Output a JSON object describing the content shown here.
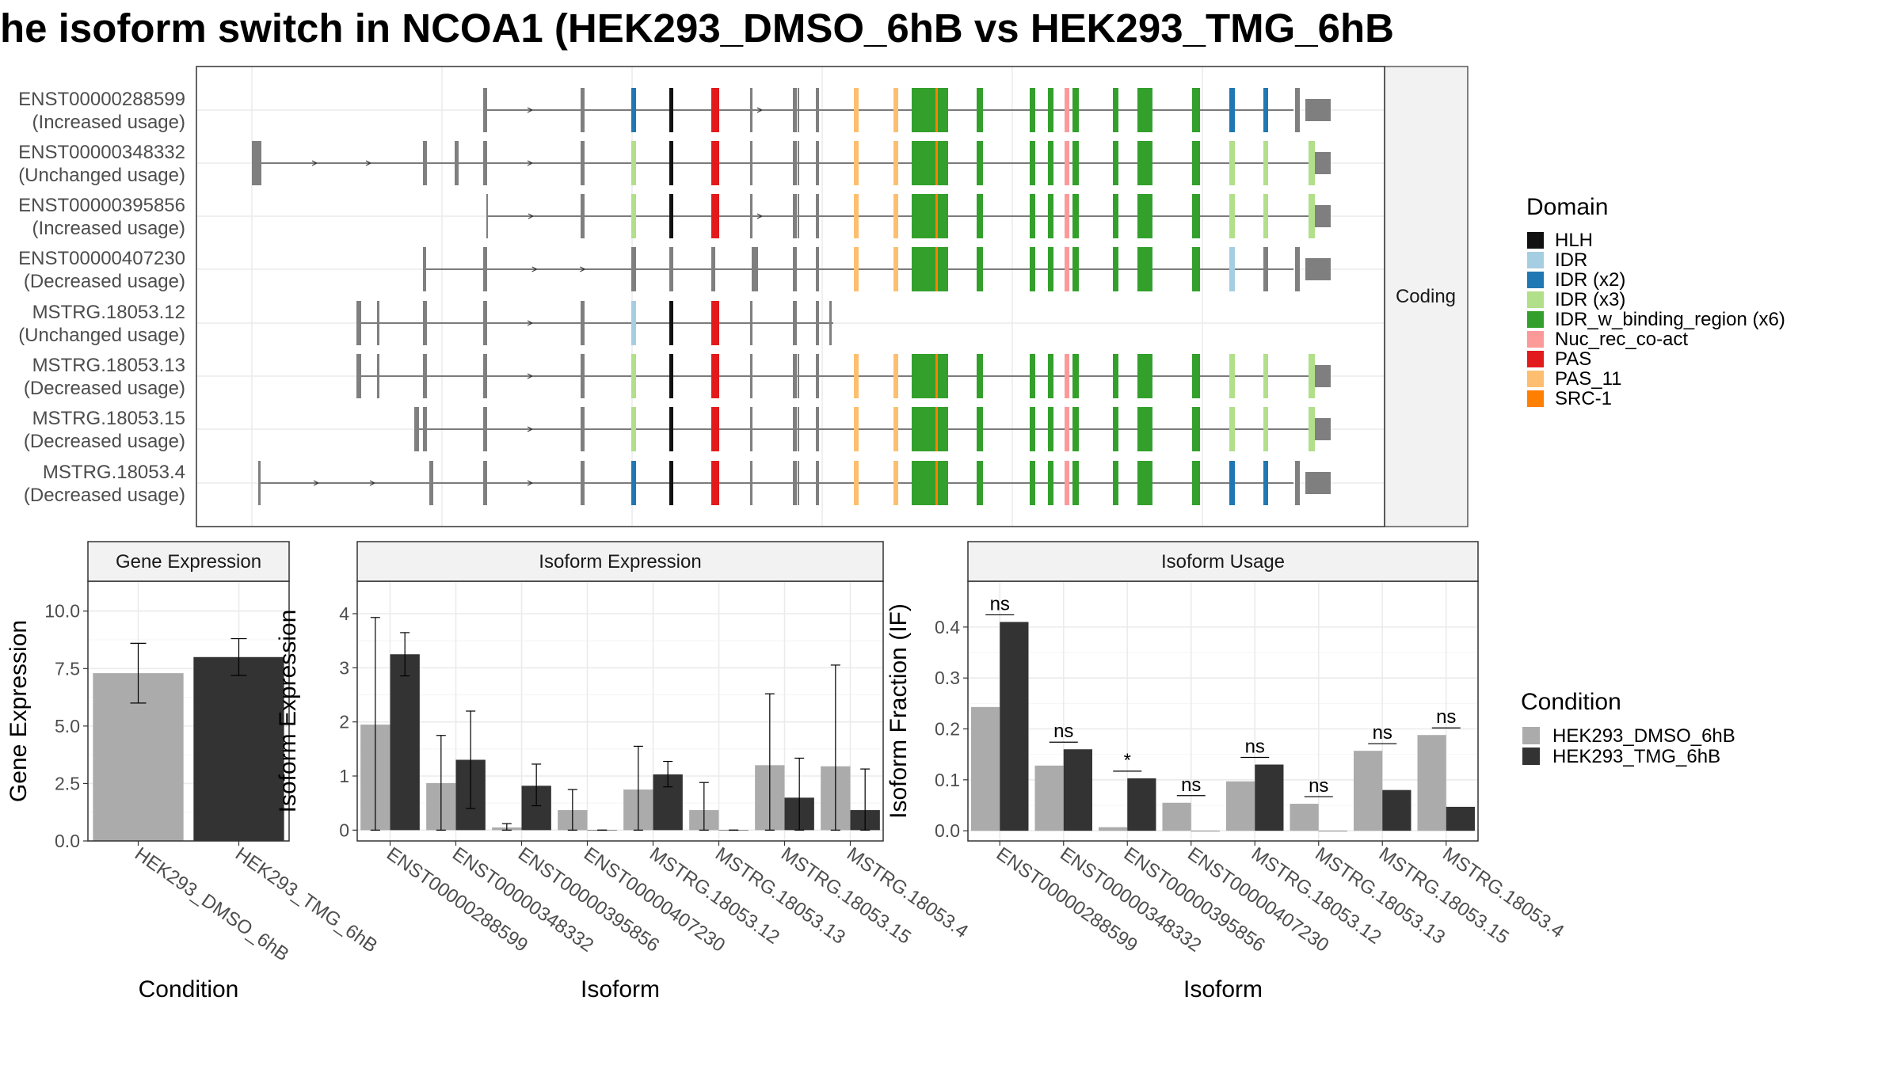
{
  "title": "he isoform switch in NCOA1 (HEK293_DMSO_6hB vs HEK293_TMG_6hB",
  "colors": {
    "dmso": "#ababab",
    "tmg": "#333333",
    "grid": "#ebebeb",
    "exon": "#7f7f7f",
    "strip": "#f2f2f2"
  },
  "structure_panel": {
    "facet_label": "Coding",
    "transcripts": [
      {
        "id": "ENST00000288599",
        "usage": "(Increased usage)"
      },
      {
        "id": "ENST00000348332",
        "usage": "(Unchanged usage)"
      },
      {
        "id": "ENST00000395856",
        "usage": "(Increased usage)"
      },
      {
        "id": "ENST00000407230",
        "usage": "(Decreased usage)"
      },
      {
        "id": "MSTRG.18053.12",
        "usage": "(Unchanged usage)"
      },
      {
        "id": "MSTRG.18053.13",
        "usage": "(Decreased usage)"
      },
      {
        "id": "MSTRG.18053.15",
        "usage": "(Decreased usage)"
      },
      {
        "id": "MSTRG.18053.4",
        "usage": "(Decreased usage)"
      }
    ]
  },
  "domain_legend": {
    "title": "Domain",
    "items": [
      {
        "label": "HLH",
        "color": "#111111"
      },
      {
        "label": "IDR",
        "color": "#a6cee3"
      },
      {
        "label": "IDR (x2)",
        "color": "#1f78b4"
      },
      {
        "label": "IDR (x3)",
        "color": "#b2df8a"
      },
      {
        "label": "IDR_w_binding_region (x6)",
        "color": "#33a02c"
      },
      {
        "label": "Nuc_rec_co-act",
        "color": "#fb9a99"
      },
      {
        "label": "PAS",
        "color": "#e31a1c"
      },
      {
        "label": "PAS_11",
        "color": "#fdbf6f"
      },
      {
        "label": "SRC-1",
        "color": "#ff7f00"
      }
    ]
  },
  "condition_legend": {
    "title": "Condition",
    "items": [
      {
        "label": "HEK293_DMSO_6hB",
        "color": "#ababab"
      },
      {
        "label": "HEK293_TMG_6hB",
        "color": "#333333"
      }
    ]
  },
  "chart_data": [
    {
      "type": "bar",
      "title": "Gene Expression",
      "xlabel": "Condition",
      "ylabel": "Gene Expression",
      "ylim": [
        0,
        11.3
      ],
      "yticks": [
        "0.0",
        "2.5",
        "5.0",
        "7.5",
        "10.0"
      ],
      "categories": [
        "HEK293_DMSO_6hB",
        "HEK293_TMG_6hB"
      ],
      "values": [
        7.3,
        8.0
      ],
      "error_low": [
        6.0,
        7.2
      ],
      "error_high": [
        8.6,
        8.8
      ]
    },
    {
      "type": "bar",
      "title": "Isoform Expression",
      "xlabel": "Isoform",
      "ylabel": "Isoform Expression",
      "ylim": [
        -0.2,
        4.6
      ],
      "yticks": [
        "0",
        "1",
        "2",
        "3",
        "4"
      ],
      "categories": [
        "ENST00000288599",
        "ENST00000348332",
        "ENST00000395856",
        "ENST00000407230",
        "MSTRG.18053.12",
        "MSTRG.18053.13",
        "MSTRG.18053.15",
        "MSTRG.18053.4"
      ],
      "series": [
        {
          "name": "HEK293_DMSO_6hB",
          "values": [
            1.95,
            0.87,
            0.05,
            0.37,
            0.75,
            0.37,
            1.2,
            1.18
          ],
          "error_low": [
            0.0,
            0.0,
            0.0,
            0.0,
            0.0,
            0.0,
            0.0,
            0.0
          ],
          "error_high": [
            3.93,
            1.75,
            0.12,
            0.75,
            1.55,
            0.88,
            2.52,
            3.05
          ]
        },
        {
          "name": "HEK293_TMG_6hB",
          "values": [
            3.25,
            1.3,
            0.82,
            0.0,
            1.03,
            0.0,
            0.6,
            0.37
          ],
          "error_low": [
            2.85,
            0.4,
            0.45,
            0.0,
            0.8,
            0.0,
            0.0,
            0.0
          ],
          "error_high": [
            3.65,
            2.2,
            1.22,
            0.0,
            1.27,
            0.0,
            1.33,
            1.13
          ]
        }
      ]
    },
    {
      "type": "bar",
      "title": "Isoform Usage",
      "xlabel": "Isoform",
      "ylabel": "Isoform Fraction (IF)",
      "ylim": [
        -0.02,
        0.49
      ],
      "yticks": [
        "0.0",
        "0.1",
        "0.2",
        "0.3",
        "0.4"
      ],
      "categories": [
        "ENST00000288599",
        "ENST00000348332",
        "ENST00000395856",
        "ENST00000407230",
        "MSTRG.18053.12",
        "MSTRG.18053.13",
        "MSTRG.18053.15",
        "MSTRG.18053.4"
      ],
      "series": [
        {
          "name": "HEK293_DMSO_6hB",
          "values": [
            0.243,
            0.128,
            0.007,
            0.055,
            0.097,
            0.053,
            0.157,
            0.188
          ]
        },
        {
          "name": "HEK293_TMG_6hB",
          "values": [
            0.41,
            0.16,
            0.103,
            0.0,
            0.13,
            0.0,
            0.08,
            0.047
          ]
        }
      ],
      "significance": [
        "ns",
        "ns",
        "*",
        "ns",
        "ns",
        "ns",
        "ns",
        "ns"
      ]
    }
  ]
}
